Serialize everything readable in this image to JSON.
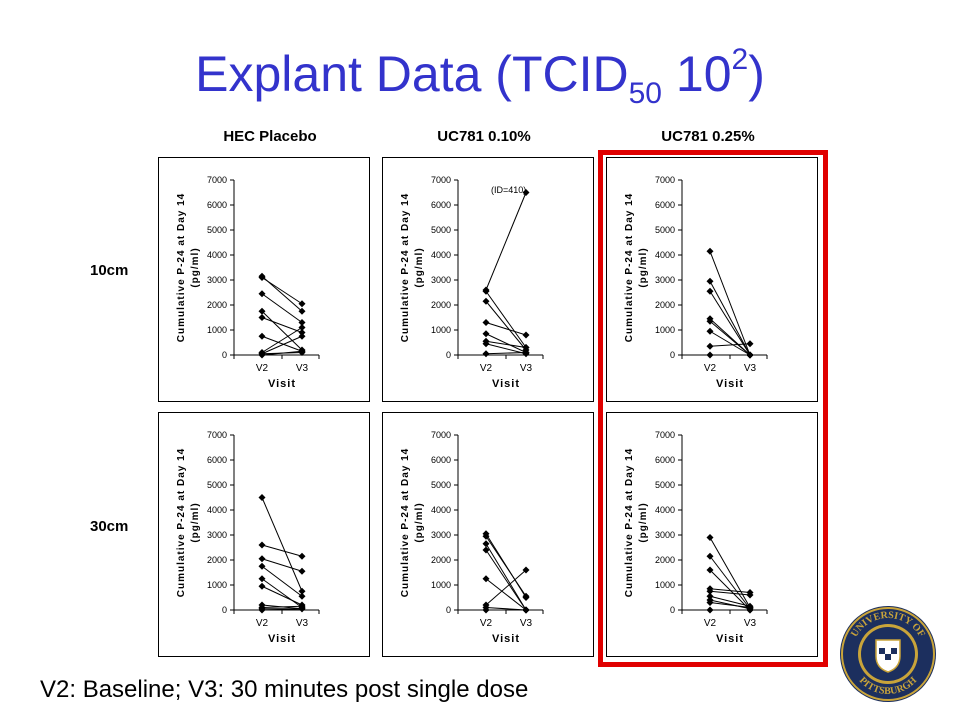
{
  "title": {
    "main": "Explant Data (TCID",
    "sub": "50",
    "mid": " 10",
    "sup": "2",
    "end": ")"
  },
  "columns": [
    "HEC Placebo",
    "UC781 0.10%",
    "UC781 0.25%"
  ],
  "rows": [
    "10cm",
    "30cm"
  ],
  "footnote": "V2: Baseline; V3: 30 minutes post single dose",
  "highlight_color": "#e00000",
  "title_color": "#3333cc",
  "seal_text": {
    "top": "UNIVERSITY OF",
    "bottom": "PITTSBURGH"
  },
  "chart_data": [
    {
      "type": "line",
      "id": "hec-10",
      "ylabel": "Cumulative P-24 at Day 14 (pg/ml)",
      "xlabel": "Visit",
      "x": [
        "V2",
        "V3"
      ],
      "ylim": [
        0,
        7000
      ],
      "yticks": [
        0,
        1000,
        2000,
        3000,
        4000,
        5000,
        6000,
        7000
      ],
      "annotation": "",
      "series": [
        [
          3100,
          2050
        ],
        [
          3150,
          1750
        ],
        [
          2450,
          1300
        ],
        [
          1750,
          200
        ],
        [
          1500,
          900
        ],
        [
          750,
          150
        ],
        [
          100,
          1100
        ],
        [
          50,
          100
        ],
        [
          0,
          150
        ],
        [
          50,
          750
        ]
      ]
    },
    {
      "type": "line",
      "id": "uc10-10",
      "ylabel": "Cumulative P-24 at Day 14 (pg/ml)",
      "xlabel": "Visit",
      "x": [
        "V2",
        "V3"
      ],
      "ylim": [
        0,
        7000
      ],
      "yticks": [
        0,
        1000,
        2000,
        3000,
        4000,
        5000,
        6000,
        7000
      ],
      "annotation": "(ID=410)",
      "series": [
        [
          2600,
          6500
        ],
        [
          2550,
          300
        ],
        [
          2150,
          200
        ],
        [
          1300,
          800
        ],
        [
          850,
          100
        ],
        [
          550,
          300
        ],
        [
          450,
          50
        ],
        [
          50,
          100
        ]
      ]
    },
    {
      "type": "line",
      "id": "uc25-10",
      "ylabel": "Cumulative P-24 at Day 14 (pg/ml)",
      "xlabel": "Visit",
      "x": [
        "V2",
        "V3"
      ],
      "ylim": [
        0,
        7000
      ],
      "yticks": [
        0,
        1000,
        2000,
        3000,
        4000,
        5000,
        6000,
        7000
      ],
      "annotation": "",
      "series": [
        [
          4150,
          0
        ],
        [
          2950,
          0
        ],
        [
          2550,
          0
        ],
        [
          1450,
          0
        ],
        [
          1350,
          0
        ],
        [
          950,
          0
        ],
        [
          350,
          450
        ],
        [
          0,
          0
        ]
      ]
    },
    {
      "type": "line",
      "id": "hec-30",
      "ylabel": "Cumulative P-24 at Day 14 (pg/ml)",
      "xlabel": "Visit",
      "x": [
        "V2",
        "V3"
      ],
      "ylim": [
        0,
        7000
      ],
      "yticks": [
        0,
        1000,
        2000,
        3000,
        4000,
        5000,
        6000,
        7000
      ],
      "annotation": "",
      "series": [
        [
          4500,
          750
        ],
        [
          2600,
          2150
        ],
        [
          2050,
          1550
        ],
        [
          1750,
          550
        ],
        [
          1250,
          100
        ],
        [
          950,
          200
        ],
        [
          200,
          50
        ],
        [
          50,
          50
        ],
        [
          0,
          50
        ],
        [
          100,
          150
        ]
      ]
    },
    {
      "type": "line",
      "id": "uc10-30",
      "ylabel": "Cumulative P-24 at Day 14 (pg/ml)",
      "xlabel": "Visit",
      "x": [
        "V2",
        "V3"
      ],
      "ylim": [
        0,
        7000
      ],
      "yticks": [
        0,
        1000,
        2000,
        3000,
        4000,
        5000,
        6000,
        7000
      ],
      "annotation": "",
      "series": [
        [
          3050,
          500
        ],
        [
          2950,
          550
        ],
        [
          2650,
          0
        ],
        [
          2400,
          0
        ],
        [
          1250,
          0
        ],
        [
          200,
          1600
        ],
        [
          100,
          0
        ],
        [
          0,
          0
        ]
      ]
    },
    {
      "type": "line",
      "id": "uc25-30",
      "ylabel": "Cumulative P-24 at Day 14 (pg/ml)",
      "xlabel": "Visit",
      "x": [
        "V2",
        "V3"
      ],
      "ylim": [
        0,
        7000
      ],
      "yticks": [
        0,
        1000,
        2000,
        3000,
        4000,
        5000,
        6000,
        7000
      ],
      "annotation": "",
      "series": [
        [
          2900,
          100
        ],
        [
          2150,
          50
        ],
        [
          1600,
          0
        ],
        [
          850,
          700
        ],
        [
          750,
          600
        ],
        [
          550,
          150
        ],
        [
          400,
          50
        ],
        [
          300,
          100
        ],
        [
          0,
          0
        ]
      ]
    }
  ]
}
